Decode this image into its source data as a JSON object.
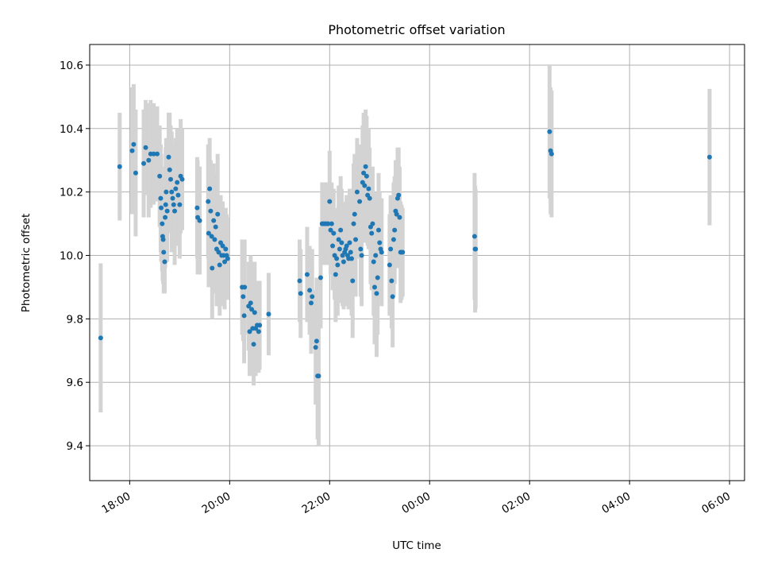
{
  "chart_data": {
    "type": "scatter",
    "title": "Photometric offset variation",
    "xlabel": "UTC time",
    "ylabel": "Photometric offset",
    "x_unit": "hours",
    "xlim": [
      17.2,
      30.3
    ],
    "ylim": [
      9.29,
      10.665
    ],
    "x_ticks": [
      {
        "value": 18,
        "label": "18:00"
      },
      {
        "value": 20,
        "label": "20:00"
      },
      {
        "value": 22,
        "label": "22:00"
      },
      {
        "value": 24,
        "label": "00:00"
      },
      {
        "value": 26,
        "label": "02:00"
      },
      {
        "value": 28,
        "label": "04:00"
      },
      {
        "value": 30,
        "label": "06:00"
      }
    ],
    "y_ticks": [
      {
        "value": 9.4,
        "label": "9.4"
      },
      {
        "value": 9.6,
        "label": "9.6"
      },
      {
        "value": 9.8,
        "label": "9.8"
      },
      {
        "value": 10.0,
        "label": "10.0"
      },
      {
        "value": 10.2,
        "label": "10.2"
      },
      {
        "value": 10.4,
        "label": "10.4"
      },
      {
        "value": 10.6,
        "label": "10.6"
      }
    ],
    "grid": true,
    "colors": {
      "point": "#1f77b4",
      "errorbar": "#d3d3d3",
      "grid": "#b0b0b0"
    },
    "points": [
      [
        17.42,
        9.74,
        0.235
      ],
      [
        17.8,
        10.28,
        0.17
      ],
      [
        18.05,
        10.33,
        0.2
      ],
      [
        18.08,
        10.35,
        0.19
      ],
      [
        18.12,
        10.26,
        0.2
      ],
      [
        18.28,
        10.29,
        0.17
      ],
      [
        18.32,
        10.34,
        0.15
      ],
      [
        18.38,
        10.3,
        0.18
      ],
      [
        18.42,
        10.32,
        0.17
      ],
      [
        18.48,
        10.32,
        0.16
      ],
      [
        18.55,
        10.32,
        0.15
      ],
      [
        18.6,
        10.25,
        0.16
      ],
      [
        18.62,
        10.18,
        0.17
      ],
      [
        18.63,
        10.15,
        0.17
      ],
      [
        18.65,
        10.1,
        0.15
      ],
      [
        18.66,
        10.06,
        0.14
      ],
      [
        18.67,
        10.05,
        0.14
      ],
      [
        18.68,
        10.01,
        0.13
      ],
      [
        18.7,
        9.98,
        0.1
      ],
      [
        18.71,
        10.12,
        0.16
      ],
      [
        18.72,
        10.16,
        0.18
      ],
      [
        18.73,
        10.2,
        0.17
      ],
      [
        18.75,
        10.14,
        0.16
      ],
      [
        18.78,
        10.31,
        0.14
      ],
      [
        18.8,
        10.27,
        0.18
      ],
      [
        18.82,
        10.24,
        0.17
      ],
      [
        18.84,
        10.2,
        0.19
      ],
      [
        18.86,
        10.18,
        0.17
      ],
      [
        18.88,
        10.16,
        0.15
      ],
      [
        18.9,
        10.14,
        0.17
      ],
      [
        18.92,
        10.21,
        0.16
      ],
      [
        18.95,
        10.23,
        0.17
      ],
      [
        18.97,
        10.19,
        0.16
      ],
      [
        19.0,
        10.16,
        0.17
      ],
      [
        19.02,
        10.25,
        0.18
      ],
      [
        19.05,
        10.24,
        0.16
      ],
      [
        19.35,
        10.15,
        0.16
      ],
      [
        19.36,
        10.12,
        0.18
      ],
      [
        19.4,
        10.11,
        0.17
      ],
      [
        19.57,
        10.17,
        0.18
      ],
      [
        19.58,
        10.07,
        0.17
      ],
      [
        19.6,
        10.21,
        0.16
      ],
      [
        19.62,
        10.14,
        0.16
      ],
      [
        19.64,
        10.06,
        0.15
      ],
      [
        19.65,
        9.96,
        0.16
      ],
      [
        19.68,
        10.11,
        0.18
      ],
      [
        19.7,
        10.05,
        0.17
      ],
      [
        19.72,
        10.09,
        0.17
      ],
      [
        19.74,
        10.02,
        0.18
      ],
      [
        19.76,
        10.13,
        0.19
      ],
      [
        19.78,
        10.01,
        0.17
      ],
      [
        19.8,
        9.97,
        0.16
      ],
      [
        19.82,
        10.04,
        0.15
      ],
      [
        19.84,
        10.0,
        0.16
      ],
      [
        19.86,
        10.03,
        0.14
      ],
      [
        19.88,
        10.0,
        0.14
      ],
      [
        19.9,
        9.98,
        0.15
      ],
      [
        19.92,
        10.02,
        0.13
      ],
      [
        19.94,
        10.0,
        0.13
      ],
      [
        19.96,
        9.99,
        0.13
      ],
      [
        20.25,
        9.9,
        0.15
      ],
      [
        20.27,
        9.87,
        0.14
      ],
      [
        20.29,
        9.81,
        0.15
      ],
      [
        20.3,
        9.9,
        0.15
      ],
      [
        20.38,
        9.84,
        0.14
      ],
      [
        20.4,
        9.76,
        0.14
      ],
      [
        20.42,
        9.85,
        0.15
      ],
      [
        20.44,
        9.83,
        0.15
      ],
      [
        20.46,
        9.77,
        0.14
      ],
      [
        20.48,
        9.72,
        0.13
      ],
      [
        20.5,
        9.82,
        0.16
      ],
      [
        20.52,
        9.77,
        0.15
      ],
      [
        20.55,
        9.78,
        0.14
      ],
      [
        20.58,
        9.76,
        0.13
      ],
      [
        20.6,
        9.78,
        0.14
      ],
      [
        20.78,
        9.815,
        0.13
      ],
      [
        21.4,
        9.92,
        0.13
      ],
      [
        21.42,
        9.88,
        0.14
      ],
      [
        21.55,
        9.94,
        0.15
      ],
      [
        21.6,
        9.89,
        0.14
      ],
      [
        21.63,
        9.85,
        0.16
      ],
      [
        21.65,
        9.87,
        0.15
      ],
      [
        21.72,
        9.71,
        0.18
      ],
      [
        21.74,
        9.73,
        0.2
      ],
      [
        21.76,
        9.62,
        0.2
      ],
      [
        21.78,
        9.62,
        0.22
      ],
      [
        21.82,
        9.93,
        0.16
      ],
      [
        21.85,
        10.1,
        0.13
      ],
      [
        21.88,
        10.1,
        0.13
      ],
      [
        21.91,
        10.1,
        0.13
      ],
      [
        21.94,
        10.1,
        0.13
      ],
      [
        21.97,
        10.1,
        0.13
      ],
      [
        22.0,
        10.17,
        0.16
      ],
      [
        22.02,
        10.08,
        0.14
      ],
      [
        22.04,
        10.1,
        0.13
      ],
      [
        22.06,
        10.03,
        0.14
      ],
      [
        22.08,
        10.07,
        0.14
      ],
      [
        22.1,
        10.0,
        0.14
      ],
      [
        22.12,
        9.94,
        0.15
      ],
      [
        22.14,
        9.99,
        0.16
      ],
      [
        22.16,
        9.97,
        0.16
      ],
      [
        22.18,
        10.05,
        0.17
      ],
      [
        22.2,
        10.02,
        0.17
      ],
      [
        22.22,
        10.08,
        0.17
      ],
      [
        22.24,
        10.04,
        0.17
      ],
      [
        22.26,
        10.0,
        0.16
      ],
      [
        22.28,
        9.98,
        0.15
      ],
      [
        22.3,
        10.01,
        0.15
      ],
      [
        22.32,
        10.02,
        0.15
      ],
      [
        22.34,
        10.03,
        0.16
      ],
      [
        22.36,
        10.0,
        0.16
      ],
      [
        22.38,
        9.99,
        0.16
      ],
      [
        22.4,
        10.04,
        0.17
      ],
      [
        22.42,
        10.01,
        0.17
      ],
      [
        22.44,
        9.99,
        0.18
      ],
      [
        22.46,
        9.92,
        0.18
      ],
      [
        22.48,
        10.1,
        0.19
      ],
      [
        22.5,
        10.13,
        0.19
      ],
      [
        22.52,
        10.05,
        0.18
      ],
      [
        22.55,
        10.2,
        0.17
      ],
      [
        22.6,
        10.17,
        0.18
      ],
      [
        22.62,
        10.02,
        0.15
      ],
      [
        22.64,
        10.0,
        0.16
      ],
      [
        22.66,
        10.23,
        0.18
      ],
      [
        22.68,
        10.26,
        0.19
      ],
      [
        22.7,
        10.22,
        0.18
      ],
      [
        22.72,
        10.28,
        0.18
      ],
      [
        22.74,
        10.25,
        0.19
      ],
      [
        22.76,
        10.19,
        0.16
      ],
      [
        22.78,
        10.21,
        0.19
      ],
      [
        22.8,
        10.18,
        0.16
      ],
      [
        22.82,
        10.09,
        0.18
      ],
      [
        22.84,
        10.07,
        0.18
      ],
      [
        22.86,
        10.1,
        0.18
      ],
      [
        22.88,
        9.98,
        0.17
      ],
      [
        22.9,
        9.9,
        0.18
      ],
      [
        22.92,
        10.0,
        0.2
      ],
      [
        22.94,
        9.88,
        0.2
      ],
      [
        22.96,
        9.93,
        0.18
      ],
      [
        22.98,
        10.08,
        0.18
      ],
      [
        23.0,
        10.04,
        0.16
      ],
      [
        23.02,
        10.02,
        0.16
      ],
      [
        23.04,
        10.01,
        0.17
      ],
      [
        23.2,
        9.97,
        0.16
      ],
      [
        23.22,
        10.02,
        0.17
      ],
      [
        23.24,
        9.92,
        0.15
      ],
      [
        23.26,
        9.87,
        0.16
      ],
      [
        23.28,
        10.05,
        0.18
      ],
      [
        23.3,
        10.08,
        0.17
      ],
      [
        23.32,
        10.14,
        0.16
      ],
      [
        23.34,
        10.13,
        0.17
      ],
      [
        23.36,
        10.18,
        0.16
      ],
      [
        23.38,
        10.19,
        0.15
      ],
      [
        23.4,
        10.12,
        0.16
      ],
      [
        23.42,
        10.01,
        0.16
      ],
      [
        23.44,
        10.01,
        0.15
      ],
      [
        23.46,
        10.01,
        0.14
      ],
      [
        24.9,
        10.06,
        0.2
      ],
      [
        24.91,
        10.02,
        0.2
      ],
      [
        24.92,
        10.02,
        0.19
      ],
      [
        26.4,
        10.39,
        0.21
      ],
      [
        26.42,
        10.33,
        0.2
      ],
      [
        26.44,
        10.32,
        0.2
      ],
      [
        29.6,
        10.31,
        0.215
      ]
    ]
  }
}
